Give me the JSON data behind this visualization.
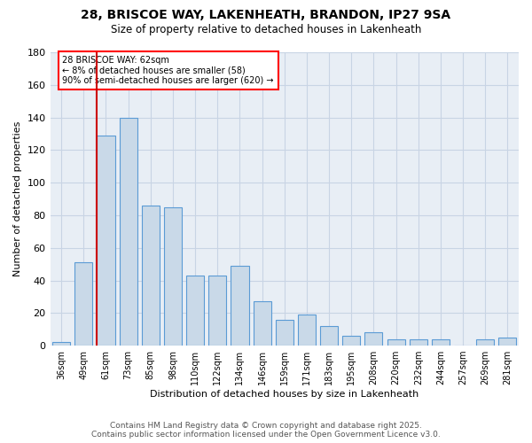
{
  "title_line1": "28, BRISCOE WAY, LAKENHEATH, BRANDON, IP27 9SA",
  "title_line2": "Size of property relative to detached houses in Lakenheath",
  "xlabel": "Distribution of detached houses by size in Lakenheath",
  "ylabel": "Number of detached properties",
  "bar_labels": [
    "36sqm",
    "49sqm",
    "61sqm",
    "73sqm",
    "85sqm",
    "98sqm",
    "110sqm",
    "122sqm",
    "134sqm",
    "146sqm",
    "159sqm",
    "171sqm",
    "183sqm",
    "195sqm",
    "208sqm",
    "220sqm",
    "232sqm",
    "244sqm",
    "257sqm",
    "269sqm",
    "281sqm"
  ],
  "bar_values": [
    2,
    51,
    129,
    140,
    86,
    85,
    43,
    43,
    49,
    27,
    16,
    19,
    12,
    6,
    8,
    4,
    4,
    4,
    0,
    4,
    5
  ],
  "bar_color": "#c9d9e8",
  "bar_edge_color": "#5b9bd5",
  "red_line_index": 2,
  "annotation_text": "28 BRISCOE WAY: 62sqm\n← 8% of detached houses are smaller (58)\n90% of semi-detached houses are larger (620) →",
  "annotation_box_color": "white",
  "annotation_box_edge_color": "red",
  "red_line_color": "#cc0000",
  "grid_color": "#c8d4e4",
  "background_color": "#e8eef5",
  "ylim": [
    0,
    180
  ],
  "yticks": [
    0,
    20,
    40,
    60,
    80,
    100,
    120,
    140,
    160,
    180
  ],
  "footer_line1": "Contains HM Land Registry data © Crown copyright and database right 2025.",
  "footer_line2": "Contains public sector information licensed under the Open Government Licence v3.0."
}
